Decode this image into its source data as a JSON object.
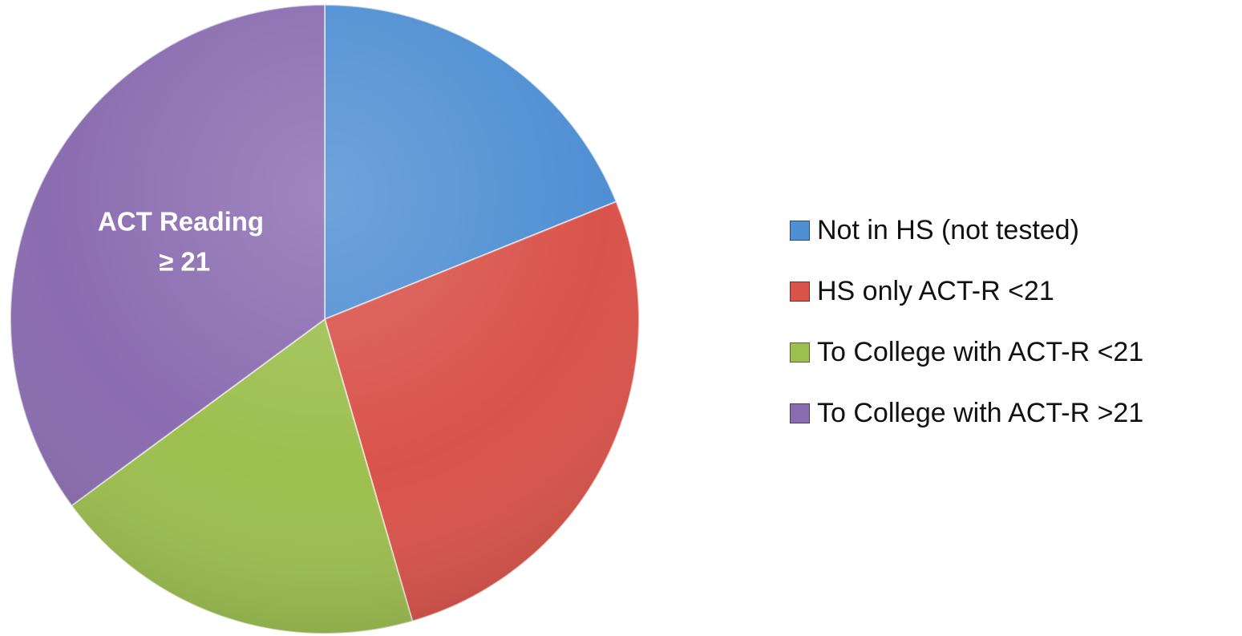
{
  "chart_data": {
    "type": "pie",
    "start_angle_deg": 0,
    "direction": "clockwise",
    "slices": [
      {
        "name": "Not in HS (not tested)",
        "value": 18.9,
        "color": "#4f8fd3"
      },
      {
        "name": "HS only ACT-R <21",
        "value": 26.6,
        "color": "#d9534a"
      },
      {
        "name": "To College with ACT-R <21",
        "value": 19.4,
        "color": "#9dbf4f"
      },
      {
        "name": "To College with ACT-R >21",
        "value": 35.1,
        "color": "#8a6cb0"
      }
    ],
    "slice_labels": [
      {
        "slice": 3,
        "lines": [
          "ACT Reading",
          "≥ 21"
        ]
      }
    ],
    "legend": {
      "position": "right",
      "items": [
        "Not in HS (not tested)",
        "HS only ACT-R <21",
        "To College with ACT-R <21",
        "To College with ACT-R >21"
      ]
    }
  }
}
